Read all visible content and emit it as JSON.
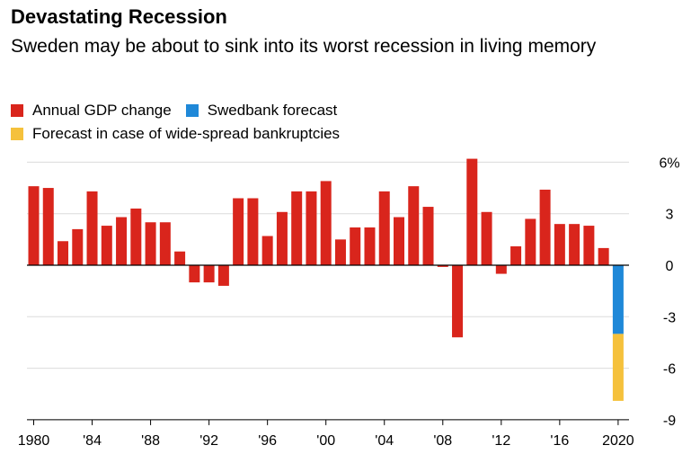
{
  "title": "Devastating Recession",
  "subtitle": "Sweden may be about to sink into its worst recession in living memory",
  "legend": [
    {
      "label": "Annual GDP change",
      "color": "#d9251c"
    },
    {
      "label": "Swedbank forecast",
      "color": "#1f88d8"
    },
    {
      "label": "Forecast in case of wide-spread bankruptcies",
      "color": "#f5c13c"
    }
  ],
  "chart_data": {
    "type": "bar",
    "title": "Devastating Recession",
    "subtitle": "Sweden may be about to sink into its worst recession in living memory",
    "xlabel": "",
    "ylabel": "",
    "ylim": [
      -9,
      6
    ],
    "y_ticks": [
      6,
      3,
      0,
      -3,
      -6,
      -9
    ],
    "y_tick_labels": [
      "6%",
      "3",
      "0",
      "-3",
      "-6",
      "-9"
    ],
    "x_ticks": [
      1980,
      1984,
      1988,
      1992,
      1996,
      2000,
      2004,
      2008,
      2012,
      2016,
      2020
    ],
    "x_tick_labels": [
      "1980",
      "'84",
      "'88",
      "'92",
      "'96",
      "'00",
      "'04",
      "'08",
      "'12",
      "'16",
      "2020"
    ],
    "grid": "horizontal",
    "categories": [
      1980,
      1981,
      1982,
      1983,
      1984,
      1985,
      1986,
      1987,
      1988,
      1989,
      1990,
      1991,
      1992,
      1993,
      1994,
      1995,
      1996,
      1997,
      1998,
      1999,
      2000,
      2001,
      2002,
      2003,
      2004,
      2005,
      2006,
      2007,
      2008,
      2009,
      2010,
      2011,
      2012,
      2013,
      2014,
      2015,
      2016,
      2017,
      2018,
      2019
    ],
    "series": [
      {
        "name": "Annual GDP change",
        "color": "#d9251c",
        "values": [
          4.6,
          4.5,
          1.4,
          2.1,
          4.3,
          2.3,
          2.8,
          3.3,
          2.5,
          2.5,
          0.8,
          -1.0,
          -1.0,
          -1.2,
          3.9,
          3.9,
          1.7,
          3.1,
          4.3,
          4.3,
          4.9,
          1.5,
          2.2,
          2.2,
          4.3,
          2.8,
          4.6,
          3.4,
          -0.1,
          -4.2,
          6.2,
          3.1,
          -0.5,
          1.1,
          2.7,
          4.4,
          2.4,
          2.4,
          2.3,
          1.0
        ]
      }
    ],
    "forecast": {
      "year": 2020,
      "segments": [
        {
          "name": "Swedbank forecast",
          "from": 0,
          "to": -4.0,
          "color": "#1f88d8"
        },
        {
          "name": "Forecast in case of wide-spread bankruptcies",
          "from": -4.0,
          "to": -7.9,
          "color": "#f5c13c"
        }
      ]
    }
  }
}
